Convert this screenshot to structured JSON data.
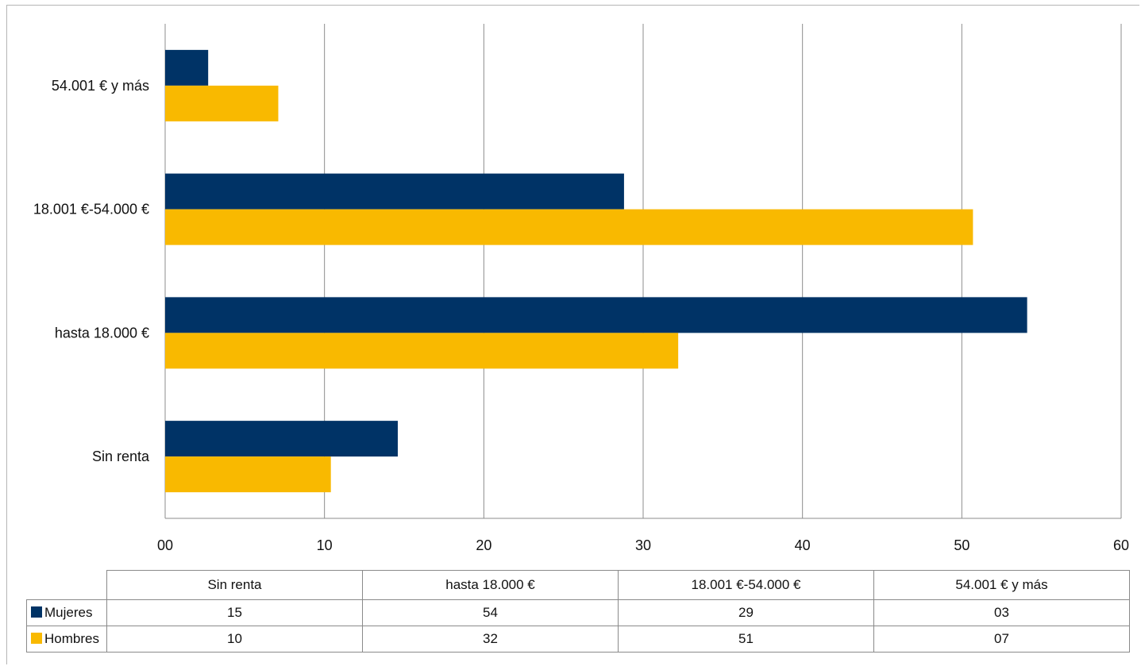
{
  "chart_data": {
    "type": "bar",
    "orientation": "horizontal",
    "categories": [
      "Sin renta",
      "hasta 18.000 €",
      "18.001 €-54.000 €",
      "54.001 € y más"
    ],
    "series": [
      {
        "name": "Mujeres",
        "color": "#003366",
        "values": [
          14.6,
          54.1,
          28.8,
          2.7
        ],
        "table_labels": [
          "15",
          "54",
          "29",
          "03"
        ]
      },
      {
        "name": "Hombres",
        "color": "#F9B900",
        "values": [
          10.4,
          32.2,
          50.7,
          7.1
        ],
        "table_labels": [
          "10",
          "32",
          "51",
          "07"
        ]
      }
    ],
    "xlim": [
      0,
      60
    ],
    "xticks": [
      0,
      10,
      20,
      30,
      40,
      50,
      60
    ],
    "xtick_labels": [
      "00",
      "10",
      "20",
      "30",
      "40",
      "50",
      "60"
    ],
    "grid": true,
    "legend": "data-table-below"
  }
}
